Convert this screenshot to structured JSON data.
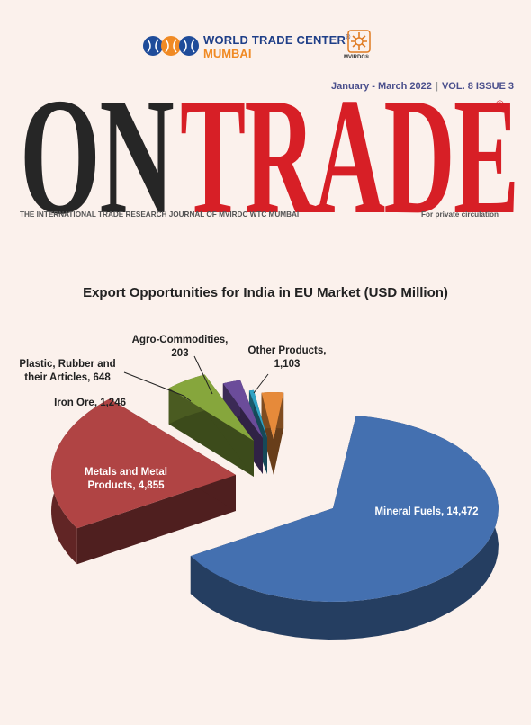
{
  "header": {
    "org_name": "WORLD TRADE CENTER",
    "org_reg": "®",
    "org_city": "MUMBAI",
    "partner_logo_text": "MVIRDC®",
    "issue_date": "January - March 2022",
    "issue_volume": "VOL. 8 ISSUE 3",
    "masthead_left": "ON",
    "masthead_right": "TRADE",
    "masthead_reg": "®",
    "tagline": "THE INTERNATIONAL TRADE RESEARCH JOURNAL OF MVIRDC WTC MUMBAI",
    "circulation": "For private circulation"
  },
  "chart_data": {
    "type": "pie",
    "title": "Export Opportunities for India in EU Market (USD Million)",
    "slices": [
      {
        "label": "Mineral Fuels, 14,472",
        "name": "Mineral Fuels",
        "value": 14472,
        "color": "#4470b0"
      },
      {
        "label": "Metals and Metal Products, 4,855",
        "lines": [
          "Metals and Metal",
          "Products, 4,855"
        ],
        "name": "Metals and Metal Products",
        "value": 4855,
        "color": "#b04444"
      },
      {
        "label": "Iron Ore, 1,246",
        "name": "Iron Ore",
        "value": 1246,
        "color": "#86a63c"
      },
      {
        "label": "Plastic, Rubber and their Articles, 648",
        "lines": [
          "Plastic, Rubber and",
          "their Articles, 648"
        ],
        "name": "Plastic, Rubber and their Articles",
        "value": 648,
        "color": "#6b4c9a"
      },
      {
        "label": "Agro-Commodities, 203",
        "lines": [
          "Agro-Commodities,",
          "203"
        ],
        "name": "Agro-Commodities",
        "value": 203,
        "color": "#31a2c3"
      },
      {
        "label": "Other Products, 1,103",
        "lines": [
          "Other Products,",
          "1,103"
        ],
        "name": "Other Products",
        "value": 1103,
        "color": "#e68a3a"
      }
    ]
  }
}
